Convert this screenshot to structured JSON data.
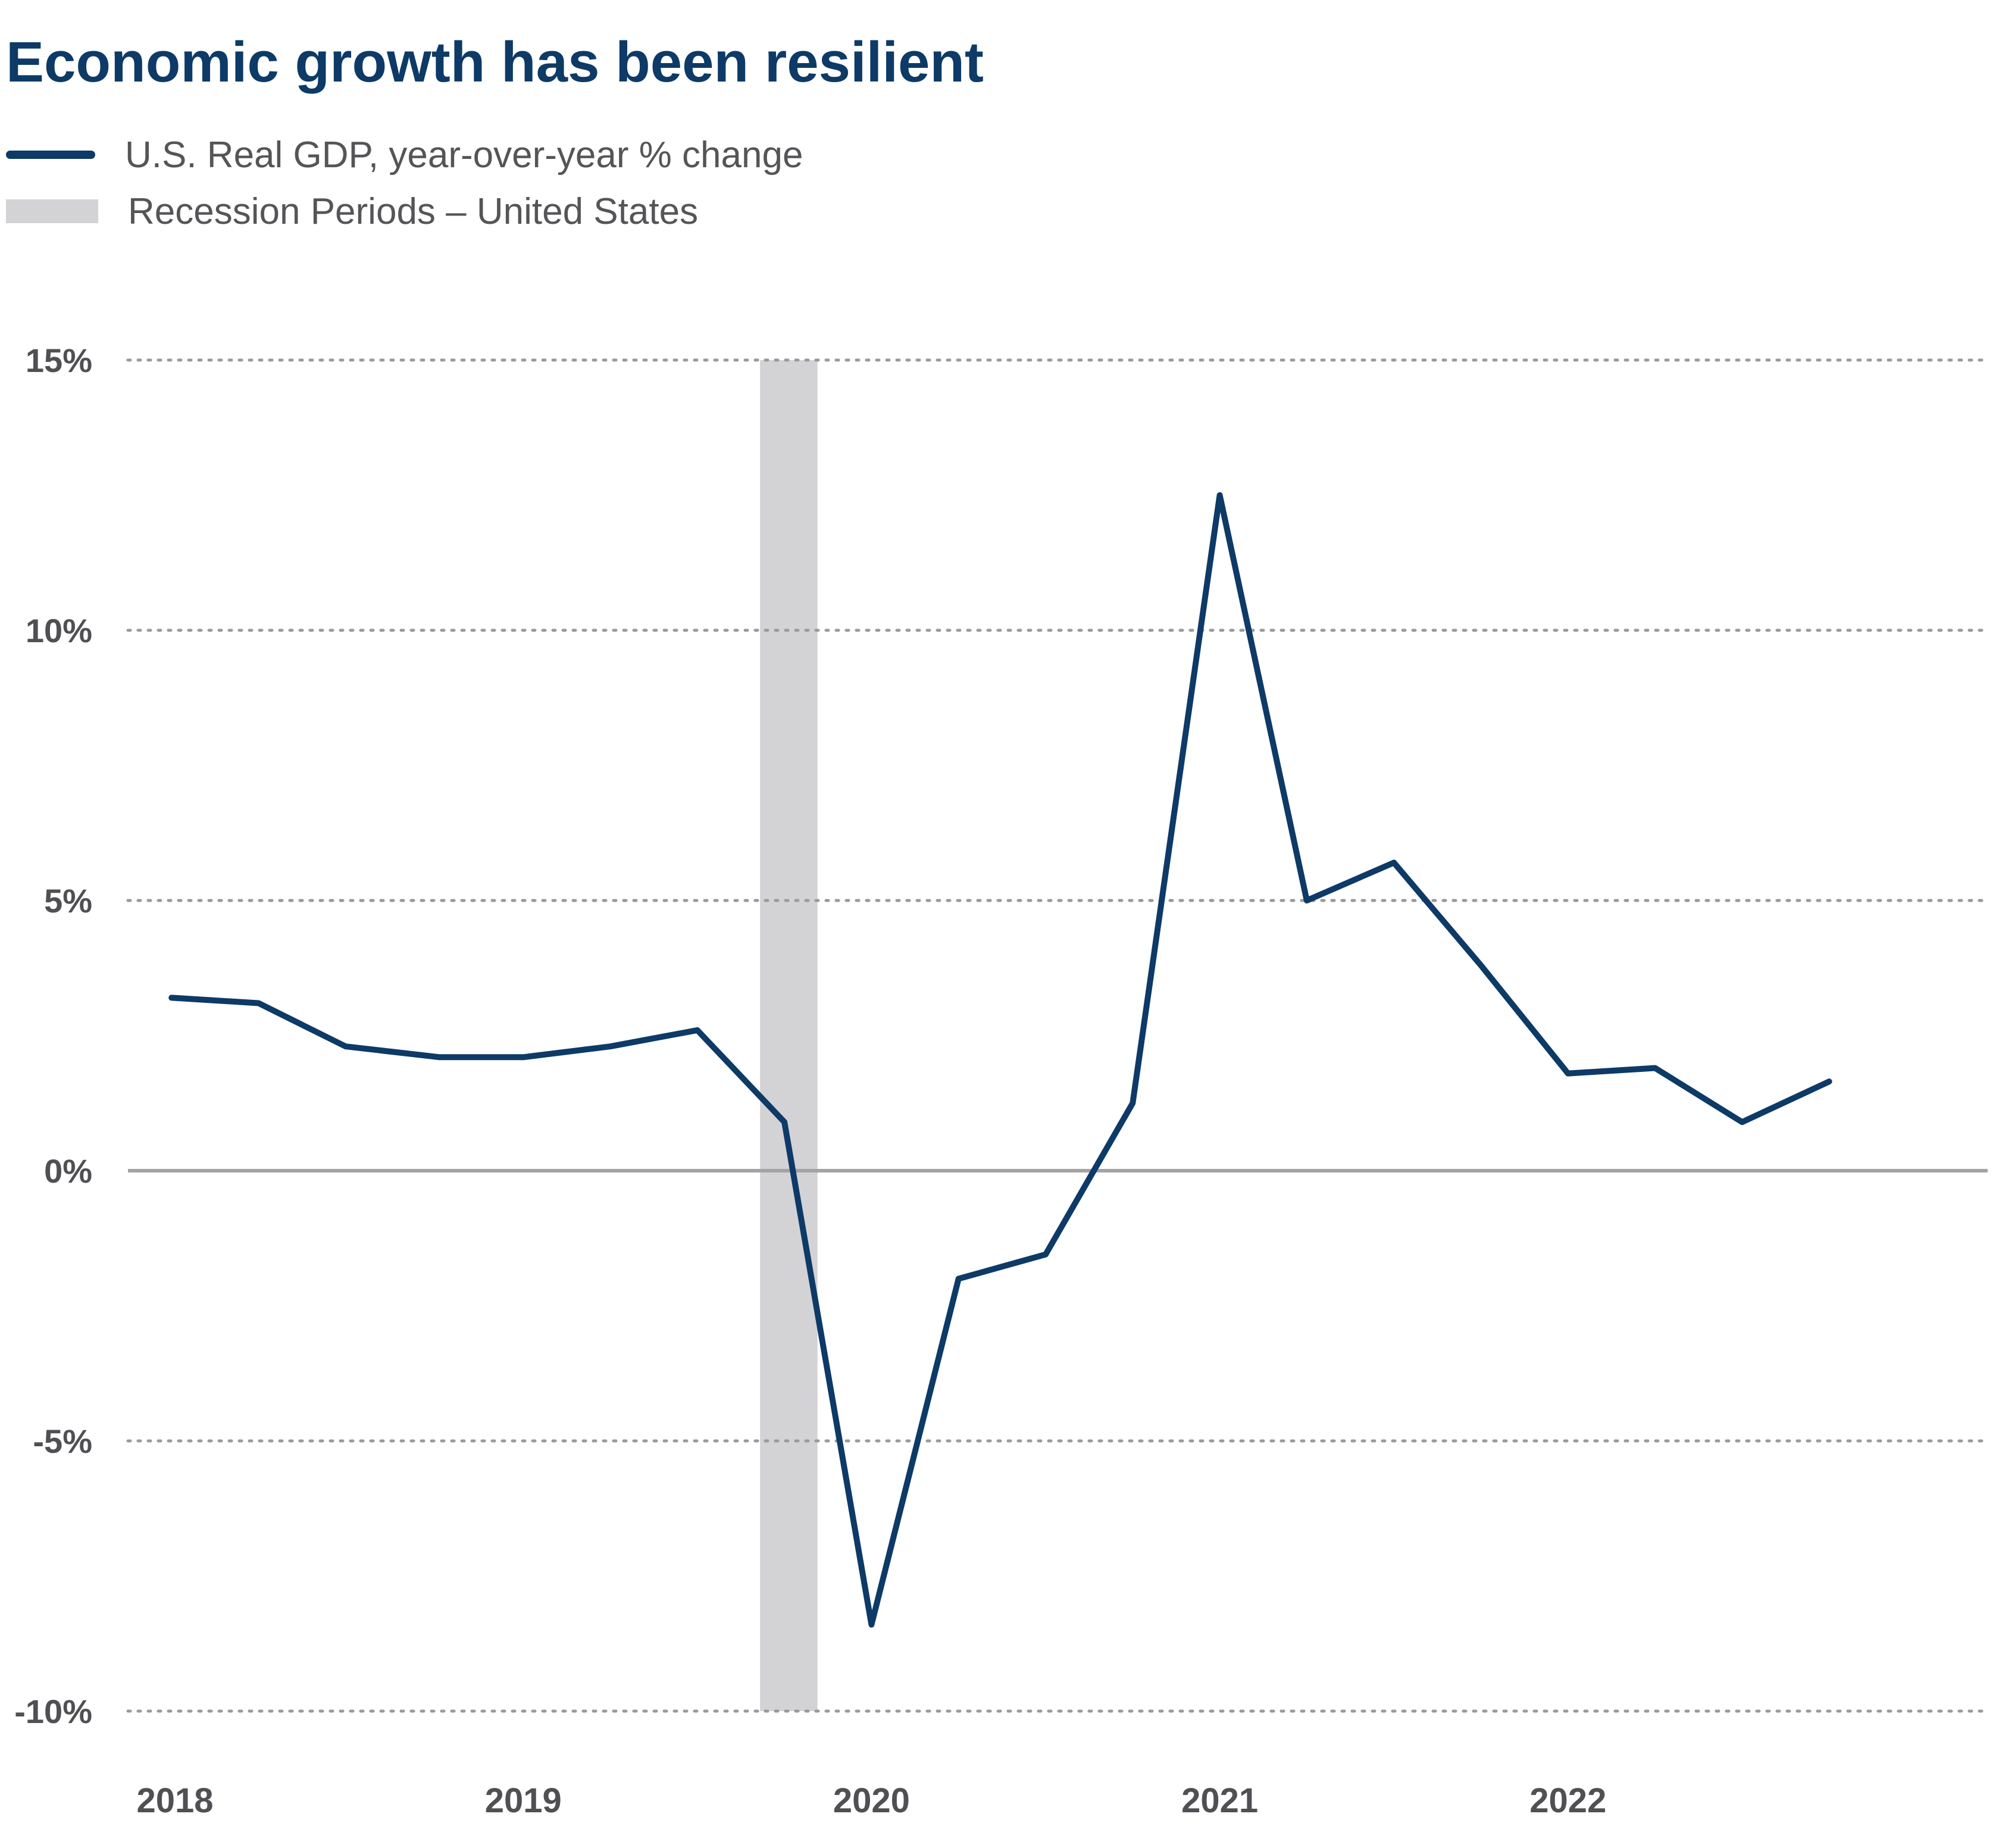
{
  "chart_data": {
    "type": "line",
    "title": "Economic growth has been resilient",
    "legend": [
      {
        "label": "U.S. Real GDP, year-over-year % change",
        "kind": "line",
        "color": "#0d3a66"
      },
      {
        "label": "Recession Periods – United States",
        "kind": "band",
        "color": "#d3d3d5"
      }
    ],
    "ylim": [
      -10,
      15
    ],
    "y_ticks": [
      {
        "value": 15,
        "label": "15%"
      },
      {
        "value": 10,
        "label": "10%"
      },
      {
        "value": 5,
        "label": "5%"
      },
      {
        "value": 0,
        "label": "0%"
      },
      {
        "value": -5,
        "label": "-5%"
      },
      {
        "value": -10,
        "label": "-10%"
      }
    ],
    "x_ticks": [
      {
        "value": 2018.0,
        "label": "2018"
      },
      {
        "value": 2019.0,
        "label": "2019"
      },
      {
        "value": 2020.0,
        "label": "2020"
      },
      {
        "value": 2021.0,
        "label": "2021"
      },
      {
        "value": 2022.0,
        "label": "2022"
      }
    ],
    "xlim": [
      2017.865,
      2023.205
    ],
    "grid": "dotted horizontal",
    "recession": {
      "start": 2019.68,
      "end": 2019.845
    },
    "series": [
      {
        "name": "U.S. Real GDP, year-over-year % change",
        "color": "#0d3a66",
        "points": [
          [
            2017.99,
            3.2
          ],
          [
            2018.24,
            3.1
          ],
          [
            2018.49,
            2.3
          ],
          [
            2018.76,
            2.1
          ],
          [
            2019.0,
            2.1
          ],
          [
            2019.25,
            2.3
          ],
          [
            2019.5,
            2.6
          ],
          [
            2019.75,
            0.9
          ],
          [
            2020.0,
            -8.4
          ],
          [
            2020.25,
            -2.0
          ],
          [
            2020.5,
            -1.55
          ],
          [
            2020.75,
            1.25
          ],
          [
            2021.0,
            12.5
          ],
          [
            2021.25,
            5.0
          ],
          [
            2021.5,
            5.7
          ],
          [
            2021.75,
            3.8
          ],
          [
            2022.0,
            1.8
          ],
          [
            2022.25,
            1.9
          ],
          [
            2022.5,
            0.9
          ],
          [
            2022.75,
            1.65
          ]
        ]
      }
    ]
  }
}
